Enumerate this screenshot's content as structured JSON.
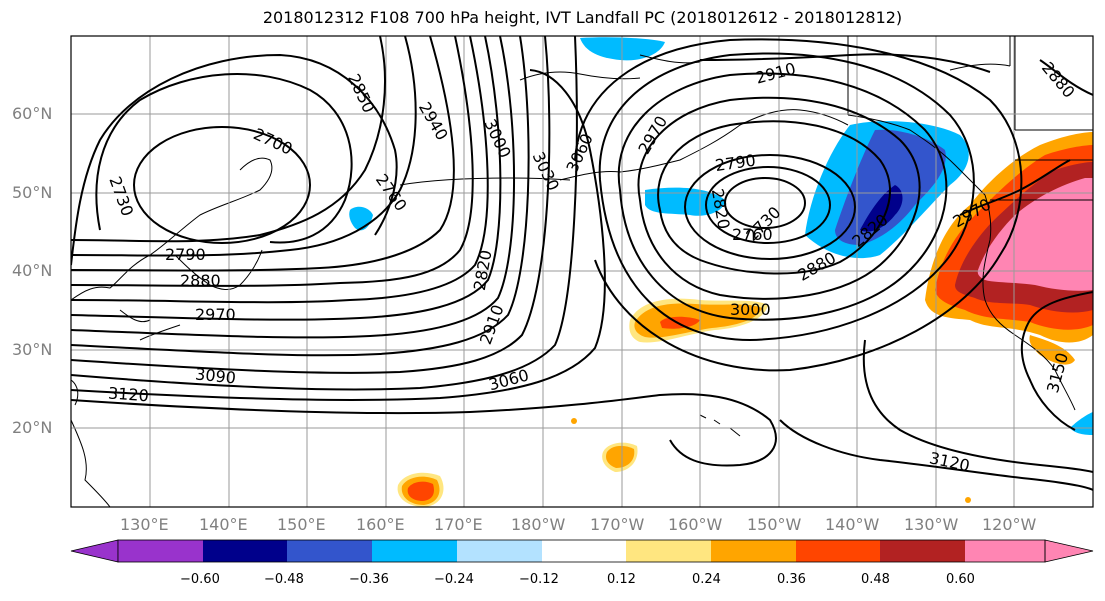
{
  "title": "2018012312 F108 700 hPa height, IVT Landfall PC (2018012612 - 2018012812)",
  "map": {
    "lat_labels": [
      "60°N",
      "50°N",
      "40°N",
      "30°N",
      "20°N"
    ],
    "lon_labels": [
      "130°E",
      "140°E",
      "150°E",
      "160°E",
      "170°E",
      "180°W",
      "170°W",
      "160°W",
      "150°W",
      "140°W",
      "130°W",
      "120°W"
    ],
    "contour_labels": [
      "2700",
      "2730",
      "2760",
      "2790",
      "2820",
      "2850",
      "2880",
      "2910",
      "2940",
      "2970",
      "3000",
      "3030",
      "3060",
      "3090",
      "3120",
      "3150"
    ],
    "shown_contour_labels": {
      "a": "2700",
      "b": "2730",
      "c": "2760",
      "d": "2790",
      "e": "2880",
      "f": "2970",
      "g": "3090",
      "h": "3120",
      "i": "2850",
      "j": "2940",
      "k": "3000",
      "l": "3030",
      "m": "3060",
      "n": "2820",
      "o": "2910",
      "p": "3060",
      "q": "2970",
      "r": "2910",
      "s": "2790",
      "t": "2820",
      "u": "2730",
      "v": "2760",
      "w": "2880",
      "x": "3000",
      "y": "2820",
      "z": "2970",
      "aa": "3120",
      "bb": "3150",
      "cc": "2880"
    }
  },
  "colorbar": {
    "labels": [
      "−0.60",
      "−0.48",
      "−0.36",
      "−0.24",
      "−0.12",
      "0.12",
      "0.24",
      "0.36",
      "0.48",
      "0.60"
    ],
    "colors": [
      "#9933cc",
      "#00008b",
      "#3355cc",
      "#00bbff",
      "#b3e2ff",
      "#ffffff",
      "#ffe680",
      "#ffa500",
      "#ff4500",
      "#b22222",
      "#ff85b3",
      "#ff85b3"
    ]
  }
}
